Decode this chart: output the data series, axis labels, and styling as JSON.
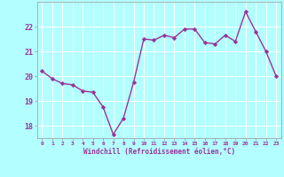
{
  "x": [
    0,
    1,
    2,
    3,
    4,
    5,
    6,
    7,
    8,
    9,
    10,
    11,
    12,
    13,
    14,
    15,
    16,
    17,
    18,
    19,
    20,
    21,
    22,
    23
  ],
  "y": [
    20.2,
    19.9,
    19.7,
    19.65,
    19.4,
    19.35,
    18.75,
    17.65,
    18.3,
    19.75,
    21.5,
    21.45,
    21.65,
    21.55,
    21.9,
    21.9,
    21.35,
    21.3,
    21.65,
    21.4,
    22.6,
    21.8,
    21.0,
    20.0
  ],
  "line_color": "#993399",
  "marker": "D",
  "marker_size": 2.2,
  "bg_color": "#b3ffff",
  "grid_color": "#ffffff",
  "xlabel": "Windchill (Refroidissement éolien,°C)",
  "tick_color": "#993399",
  "ylim": [
    17.5,
    23.0
  ],
  "xlim": [
    -0.5,
    23.5
  ],
  "yticks": [
    18,
    19,
    20,
    21,
    22
  ],
  "xticks": [
    0,
    1,
    2,
    3,
    4,
    5,
    6,
    7,
    8,
    9,
    10,
    11,
    12,
    13,
    14,
    15,
    16,
    17,
    18,
    19,
    20,
    21,
    22,
    23
  ],
  "linewidth": 1.0,
  "figsize": [
    3.2,
    2.0
  ],
  "dpi": 100
}
